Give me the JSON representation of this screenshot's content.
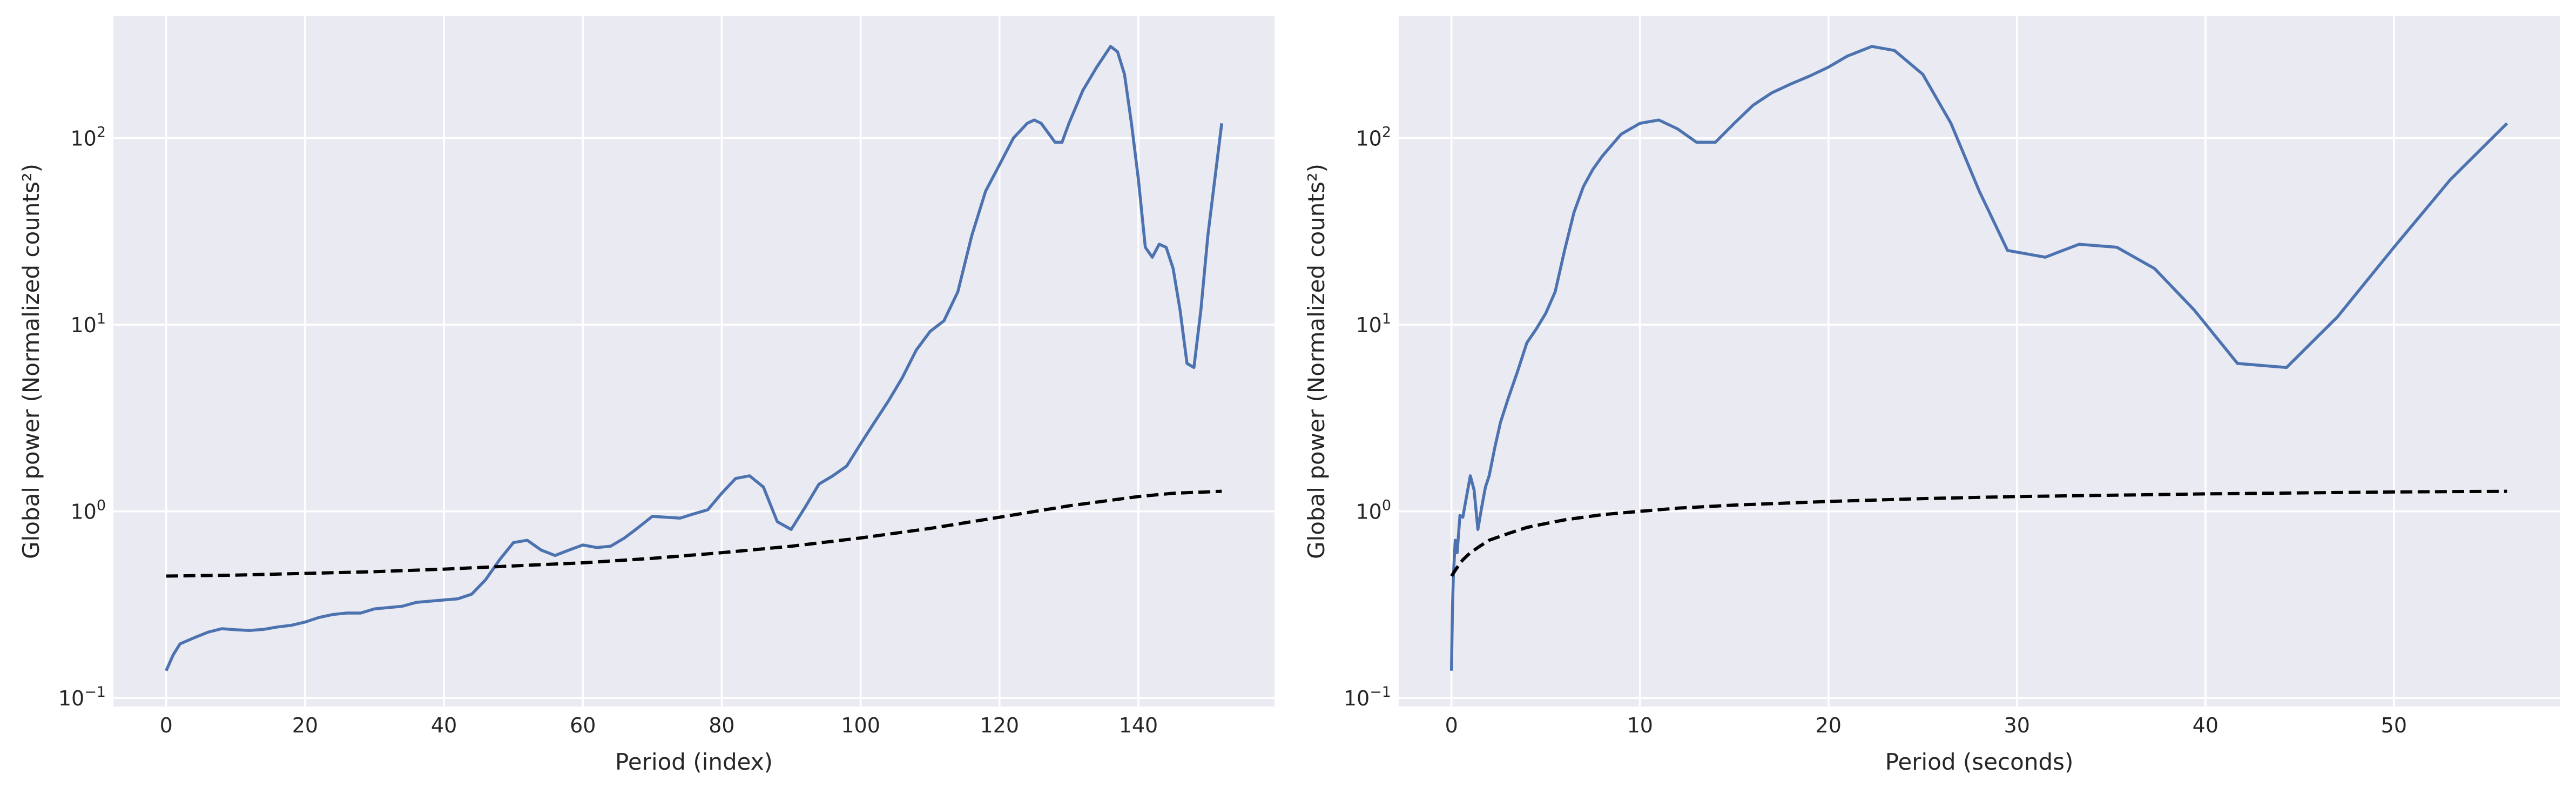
{
  "chart_data": [
    {
      "type": "line",
      "xlabel": "Period (index)",
      "ylabel": "Global power (Normalized counts²)",
      "xlim": [
        -7.6,
        159.6
      ],
      "ylim": [
        0.09,
        450
      ],
      "yscale": "log",
      "grid": true,
      "x_ticks": [
        0,
        20,
        40,
        60,
        80,
        100,
        120,
        140
      ],
      "x_tick_labels": [
        "0",
        "20",
        "40",
        "60",
        "80",
        "100",
        "120",
        "140"
      ],
      "y_ticks": [
        0.1,
        1,
        10,
        100
      ],
      "y_tick_labels": [
        [
          "10",
          "−1"
        ],
        [
          "10",
          "0"
        ],
        [
          "10",
          "1"
        ],
        [
          "10",
          "2"
        ]
      ],
      "series": [
        {
          "style": "solid",
          "color": "#4c72b0",
          "x": [
            0,
            1,
            2,
            4,
            6,
            8,
            10,
            12,
            14,
            16,
            18,
            20,
            22,
            24,
            26,
            28,
            30,
            32,
            34,
            36,
            38,
            40,
            42,
            44,
            46,
            48,
            50,
            52,
            54,
            56,
            58,
            60,
            62,
            64,
            66,
            68,
            70,
            72,
            74,
            76,
            78,
            80,
            82,
            84,
            86,
            88,
            90,
            92,
            94,
            96,
            98,
            100,
            102,
            104,
            106,
            108,
            110,
            112,
            114,
            116,
            118,
            120,
            122,
            124,
            125,
            126,
            128,
            129,
            130,
            132,
            134,
            136,
            137,
            138,
            139,
            140,
            141,
            142,
            143,
            144,
            145,
            146,
            147,
            148,
            149,
            150,
            151,
            152
          ],
          "y": [
            0.14,
            0.17,
            0.195,
            0.21,
            0.225,
            0.235,
            0.232,
            0.23,
            0.233,
            0.24,
            0.245,
            0.255,
            0.27,
            0.28,
            0.285,
            0.285,
            0.3,
            0.305,
            0.31,
            0.325,
            0.33,
            0.335,
            0.34,
            0.36,
            0.43,
            0.55,
            0.68,
            0.7,
            0.62,
            0.58,
            0.62,
            0.66,
            0.64,
            0.65,
            0.72,
            0.82,
            0.94,
            0.93,
            0.92,
            0.97,
            1.02,
            1.25,
            1.5,
            1.55,
            1.35,
            0.88,
            0.8,
            1.05,
            1.4,
            1.55,
            1.75,
            2.3,
            3.0,
            3.9,
            5.2,
            7.3,
            9.2,
            10.5,
            15,
            30,
            52,
            72,
            100,
            120,
            125,
            120,
            95,
            95,
            120,
            180,
            240,
            310,
            290,
            220,
            120,
            60,
            26,
            23,
            27,
            26,
            20,
            12,
            6.2,
            5.9,
            12,
            30,
            60,
            120
          ]
        },
        {
          "style": "dashed",
          "color": "#000000",
          "x": [
            0,
            10,
            20,
            30,
            40,
            50,
            60,
            70,
            80,
            90,
            100,
            110,
            120,
            130,
            140,
            145,
            152
          ],
          "y": [
            0.45,
            0.455,
            0.465,
            0.475,
            0.49,
            0.51,
            0.53,
            0.56,
            0.6,
            0.65,
            0.72,
            0.81,
            0.93,
            1.07,
            1.2,
            1.25,
            1.28
          ]
        }
      ]
    },
    {
      "type": "line",
      "xlabel": "Period (seconds)",
      "ylabel": "Global power (Normalized counts²)",
      "xlim": [
        -2.8,
        58.8
      ],
      "ylim": [
        0.09,
        450
      ],
      "yscale": "log",
      "grid": true,
      "x_ticks": [
        0,
        10,
        20,
        30,
        40,
        50
      ],
      "x_tick_labels": [
        "0",
        "10",
        "20",
        "30",
        "40",
        "50"
      ],
      "y_ticks": [
        0.1,
        1,
        10,
        100
      ],
      "y_tick_labels": [
        [
          "10",
          "−1"
        ],
        [
          "10",
          "0"
        ],
        [
          "10",
          "1"
        ],
        [
          "10",
          "2"
        ]
      ],
      "series": [
        {
          "style": "solid",
          "color": "#4c72b0",
          "x": [
            0,
            0.05,
            0.1,
            0.2,
            0.3,
            0.45,
            0.6,
            0.8,
            1.0,
            1.2,
            1.4,
            1.6,
            1.8,
            2.0,
            2.3,
            2.6,
            3.0,
            3.5,
            4.0,
            4.5,
            5.0,
            5.5,
            6.0,
            6.5,
            7.0,
            7.5,
            8.0,
            9.0,
            10.0,
            11.0,
            12.0,
            13.0,
            14.0,
            15.0,
            16.0,
            17.0,
            18.0,
            19.0,
            20.0,
            21.0,
            22.3,
            23.5,
            25.0,
            26.5,
            28.0,
            29.5,
            31.5,
            33.3,
            35.3,
            37.3,
            39.4,
            41.7,
            44.3,
            47.0,
            50.0,
            53.0,
            56.0
          ],
          "y": [
            0.14,
            0.3,
            0.45,
            0.7,
            0.6,
            0.95,
            0.93,
            1.2,
            1.55,
            1.3,
            0.8,
            1.05,
            1.35,
            1.55,
            2.2,
            3.0,
            4.0,
            5.6,
            8.0,
            9.5,
            11.5,
            15,
            25,
            40,
            55,
            68,
            80,
            105,
            120,
            125,
            112,
            95,
            95,
            120,
            150,
            175,
            195,
            215,
            240,
            275,
            310,
            295,
            220,
            120,
            52,
            25,
            23,
            27,
            26,
            20,
            12,
            6.2,
            5.9,
            11,
            26,
            60,
            120
          ]
        },
        {
          "style": "dashed",
          "color": "#000000",
          "x": [
            0,
            0.3,
            0.6,
            1.0,
            1.5,
            2,
            3,
            4,
            5,
            6,
            8,
            10,
            12,
            15,
            20,
            25,
            30,
            40,
            50,
            56
          ],
          "y": [
            0.45,
            0.5,
            0.55,
            0.6,
            0.65,
            0.7,
            0.76,
            0.82,
            0.86,
            0.9,
            0.96,
            1.0,
            1.04,
            1.08,
            1.13,
            1.17,
            1.2,
            1.24,
            1.27,
            1.28
          ]
        }
      ]
    }
  ]
}
